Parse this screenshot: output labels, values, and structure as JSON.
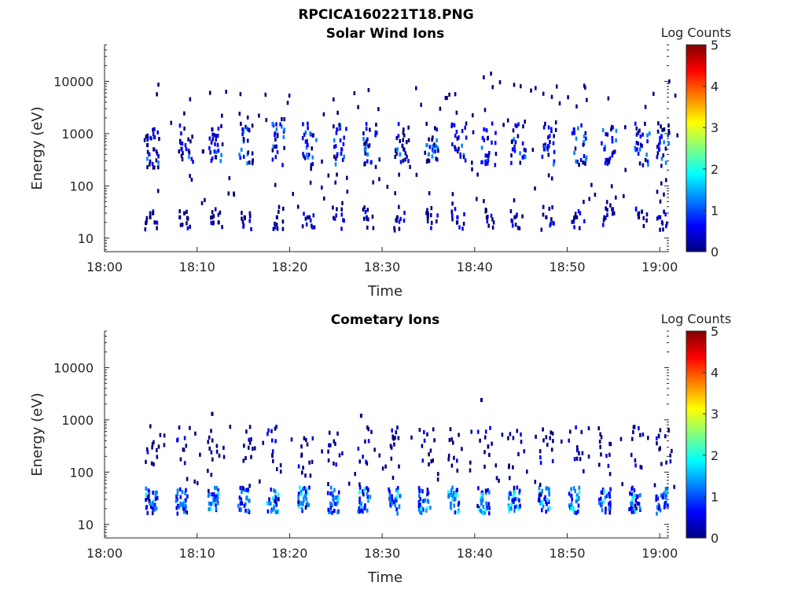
{
  "figure": {
    "title": "RPCICA160221T18.PNG"
  },
  "palette": {
    "jet": [
      "#000080",
      "#0000ff",
      "#0080ff",
      "#00ffff",
      "#80ff80",
      "#ffff00",
      "#ff8000",
      "#ff0000",
      "#800000"
    ]
  },
  "chart_data": [
    {
      "type": "heatmap",
      "title": "Solar Wind Ions",
      "xlabel": "Time",
      "ylabel": "Energy (eV)",
      "x_ticks": [
        "18:00",
        "18:10",
        "18:20",
        "18:30",
        "18:40",
        "18:50",
        "19:00"
      ],
      "y_ticks": [
        "10",
        "100",
        "1000",
        "10000"
      ],
      "y_scale": "log",
      "xlim_minutes": [
        0,
        61
      ],
      "ylim_eV": [
        5.5,
        50000
      ],
      "colorbar": {
        "label": "Log Counts",
        "ticks": [
          "0",
          "1",
          "2",
          "3",
          "4",
          "5"
        ],
        "range": [
          0,
          5
        ]
      },
      "band_start_minutes": [
        4.2,
        7.9,
        11.2,
        14.4,
        17.9,
        21.3,
        24.5,
        27.8,
        31.2,
        34.5,
        37.4,
        40.6,
        43.8,
        47.1,
        50.4,
        53.6,
        57.2,
        59.6
      ],
      "cells": [
        {
          "t": 4.5,
          "e": 600,
          "v": 0.6
        },
        {
          "t": 4.7,
          "e": 400,
          "v": 0.7
        },
        {
          "t": 5.2,
          "e": 500,
          "v": 0.5
        },
        {
          "t": 4.8,
          "e": 25,
          "v": 0.6
        },
        {
          "t": 5.1,
          "e": 30,
          "v": 0.6
        },
        {
          "t": 5.3,
          "e": 20,
          "v": 0.5
        },
        {
          "t": 8.2,
          "e": 500,
          "v": 0.8
        },
        {
          "t": 8.0,
          "e": 25,
          "v": 0.6
        },
        {
          "t": 8.5,
          "e": 30,
          "v": 0.6
        },
        {
          "t": 11.5,
          "e": 1200,
          "v": 0.6
        },
        {
          "t": 11.5,
          "e": 25,
          "v": 0.6
        },
        {
          "t": 12.2,
          "e": 20,
          "v": 0.5
        },
        {
          "t": 14.8,
          "e": 1200,
          "v": 0.8
        },
        {
          "t": 15.0,
          "e": 25,
          "v": 0.6
        },
        {
          "t": 18.5,
          "e": 25,
          "v": 0.6
        },
        {
          "t": 21.8,
          "e": 600,
          "v": 0.8
        },
        {
          "t": 22.0,
          "e": 25,
          "v": 0.6
        },
        {
          "t": 25.0,
          "e": 1200,
          "v": 0.7
        },
        {
          "t": 25.5,
          "e": 500,
          "v": 0.8
        },
        {
          "t": 28.0,
          "e": 500,
          "v": 1.8
        },
        {
          "t": 28.3,
          "e": 400,
          "v": 1.5
        },
        {
          "t": 28.2,
          "e": 25,
          "v": 0.7
        },
        {
          "t": 31.5,
          "e": 500,
          "v": 1.6
        },
        {
          "t": 31.8,
          "e": 400,
          "v": 1.3
        },
        {
          "t": 31.5,
          "e": 25,
          "v": 0.6
        },
        {
          "t": 34.7,
          "e": 600,
          "v": 1.8
        },
        {
          "t": 34.9,
          "e": 400,
          "v": 1.4
        },
        {
          "t": 34.8,
          "e": 25,
          "v": 0.6
        },
        {
          "t": 37.8,
          "e": 500,
          "v": 0.8
        },
        {
          "t": 38.0,
          "e": 25,
          "v": 0.7
        },
        {
          "t": 40.9,
          "e": 1200,
          "v": 0.9
        },
        {
          "t": 41.2,
          "e": 25,
          "v": 0.6
        },
        {
          "t": 44.0,
          "e": 500,
          "v": 1.1
        },
        {
          "t": 44.2,
          "e": 25,
          "v": 0.6
        },
        {
          "t": 47.4,
          "e": 500,
          "v": 0.8
        },
        {
          "t": 47.6,
          "e": 25,
          "v": 0.6
        },
        {
          "t": 50.6,
          "e": 1200,
          "v": 0.9
        },
        {
          "t": 50.9,
          "e": 25,
          "v": 0.6
        },
        {
          "t": 53.9,
          "e": 500,
          "v": 0.7
        },
        {
          "t": 53.9,
          "e": 25,
          "v": 0.6
        },
        {
          "t": 57.4,
          "e": 500,
          "v": 1.2
        },
        {
          "t": 57.6,
          "e": 25,
          "v": 0.6
        },
        {
          "t": 59.8,
          "e": 500,
          "v": 1.1
        },
        {
          "t": 59.9,
          "e": 25,
          "v": 0.6
        }
      ]
    },
    {
      "type": "heatmap",
      "title": "Cometary Ions",
      "xlabel": "Time",
      "ylabel": "Energy (eV)",
      "x_ticks": [
        "18:00",
        "18:10",
        "18:20",
        "18:30",
        "18:40",
        "18:50",
        "19:00"
      ],
      "y_ticks": [
        "10",
        "100",
        "1000",
        "10000"
      ],
      "y_scale": "log",
      "xlim_minutes": [
        0,
        61
      ],
      "ylim_eV": [
        5.5,
        50000
      ],
      "colorbar": {
        "label": "Log Counts",
        "ticks": [
          "0",
          "1",
          "2",
          "3",
          "4",
          "5"
        ],
        "range": [
          0,
          5
        ]
      },
      "band_start_minutes": [
        4.3,
        7.6,
        10.9,
        14.3,
        17.4,
        20.8,
        24.0,
        27.3,
        30.6,
        33.8,
        37.0,
        40.2,
        43.5,
        46.8,
        50.0,
        53.3,
        56.6,
        59.5
      ],
      "cells": [
        {
          "t": 4.8,
          "e": 25,
          "v": 1.6
        },
        {
          "t": 5.1,
          "e": 20,
          "v": 1.2
        },
        {
          "t": 8.1,
          "e": 25,
          "v": 1.5
        },
        {
          "t": 8.4,
          "e": 20,
          "v": 1.1
        },
        {
          "t": 11.2,
          "e": 25,
          "v": 1.3
        },
        {
          "t": 14.6,
          "e": 25,
          "v": 1.2
        },
        {
          "t": 17.8,
          "e": 25,
          "v": 1.5
        },
        {
          "t": 21.1,
          "e": 25,
          "v": 1.6
        },
        {
          "t": 24.3,
          "e": 25,
          "v": 1.7
        },
        {
          "t": 27.6,
          "e": 25,
          "v": 1.8
        },
        {
          "t": 30.9,
          "e": 25,
          "v": 1.3
        },
        {
          "t": 34.1,
          "e": 20,
          "v": 1.9
        },
        {
          "t": 37.3,
          "e": 25,
          "v": 1.7
        },
        {
          "t": 40.6,
          "e": 25,
          "v": 1.4
        },
        {
          "t": 43.8,
          "e": 20,
          "v": 1.8
        },
        {
          "t": 47.1,
          "e": 25,
          "v": 1.9
        },
        {
          "t": 50.3,
          "e": 20,
          "v": 2.0
        },
        {
          "t": 53.6,
          "e": 25,
          "v": 1.8
        },
        {
          "t": 56.9,
          "e": 25,
          "v": 1.8
        },
        {
          "t": 59.8,
          "e": 20,
          "v": 1.2
        },
        {
          "t": 40.6,
          "e": 2400,
          "v": 0.6
        },
        {
          "t": 27.6,
          "e": 1200,
          "v": 0.5
        },
        {
          "t": 11.5,
          "e": 1300,
          "v": 0.5
        }
      ]
    }
  ]
}
